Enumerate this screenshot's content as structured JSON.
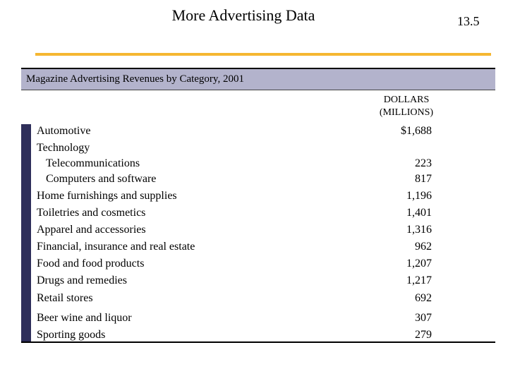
{
  "slide": {
    "title": "More Advertising Data",
    "number": "13.5"
  },
  "table": {
    "caption": "Magazine Advertising Revenues by Category, 2001",
    "column_header_line1": "DOLLARS",
    "column_header_line2": "(MILLIONS)",
    "rows": [
      {
        "label": "Automotive",
        "value": "$1,688"
      },
      {
        "label": "Technology",
        "value": ""
      },
      {
        "label": "Telecommunications",
        "value": "223"
      },
      {
        "label": "Computers and software",
        "value": "817"
      },
      {
        "label": "Home furnishings and supplies",
        "value": "1,196"
      },
      {
        "label": "Toiletries and cosmetics",
        "value": "1,401"
      },
      {
        "label": "Apparel and accessories",
        "value": "1,316"
      },
      {
        "label": "Financial, insurance and real estate",
        "value": "962"
      },
      {
        "label": "Food and food products",
        "value": "1,207"
      },
      {
        "label": "Drugs and remedies",
        "value": "1,217"
      },
      {
        "label": "Retail stores",
        "value": "692"
      },
      {
        "label": "Beer wine and liquor",
        "value": "307"
      },
      {
        "label": "Sporting goods",
        "value": "279"
      }
    ]
  },
  "colors": {
    "accent": "#f5b731",
    "header_bar": "#b3b3cc",
    "stripe": "#2e2e5a"
  }
}
